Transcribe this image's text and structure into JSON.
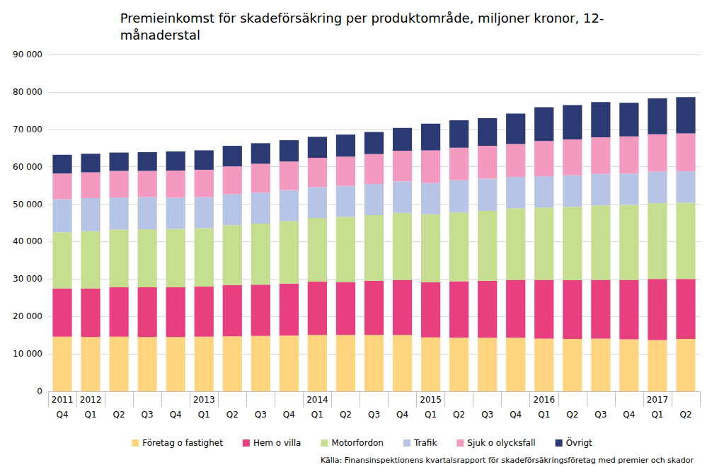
{
  "chart_data": {
    "type": "bar",
    "title": "Premieinkomst för skadeförsäkring per produktområde, miljoner kronor, 12-\nmånaderstal",
    "source": "Källa: Finansinspektionens kvartalsrapport för skadeförsäkringsföretag med premier och skador",
    "categories": [
      "Q4",
      "Q1",
      "Q2",
      "Q3",
      "Q4",
      "Q1",
      "Q2",
      "Q3",
      "Q4",
      "Q1",
      "Q2",
      "Q3",
      "Q4",
      "Q1",
      "Q2",
      "Q3",
      "Q4",
      "Q1",
      "Q2",
      "Q3",
      "Q4",
      "Q1",
      "Q2"
    ],
    "years": [
      "2011",
      "2012",
      null,
      null,
      null,
      "2013",
      null,
      null,
      null,
      "2014",
      null,
      null,
      null,
      "2015",
      null,
      null,
      null,
      "2016",
      null,
      null,
      null,
      "2017",
      null
    ],
    "stacked": true,
    "grid": true,
    "legend": "bottom",
    "ylim": [
      0,
      90000
    ],
    "yticks": [
      0,
      {
        "value": 10000,
        "label": "10 000"
      },
      {
        "value": 20000,
        "label": "20 000"
      },
      {
        "value": 30000,
        "label": "30 000"
      },
      {
        "value": 40000,
        "label": "40 000"
      },
      {
        "value": 50000,
        "label": "50 000"
      },
      {
        "value": 60000,
        "label": "60 000"
      },
      {
        "value": 70000,
        "label": "70 000"
      },
      {
        "value": 80000,
        "label": "80 000"
      },
      {
        "value": 90000,
        "label": "90 000"
      }
    ],
    "series": [
      {
        "name": "Företag o fastighet",
        "color": "#FFD580",
        "values": [
          14600,
          14500,
          14600,
          14500,
          14500,
          14600,
          14700,
          14800,
          14900,
          15100,
          15100,
          15100,
          15100,
          14400,
          14300,
          14300,
          14300,
          14100,
          14000,
          14100,
          13900,
          13700,
          14000
        ]
      },
      {
        "name": "Hem o villa",
        "color": "#E8407F",
        "values": [
          12900,
          13000,
          13200,
          13300,
          13300,
          13400,
          13700,
          13700,
          13900,
          14200,
          14100,
          14400,
          14700,
          14700,
          15100,
          15200,
          15500,
          15700,
          15700,
          15700,
          15900,
          16300,
          16000
        ]
      },
      {
        "name": "Motorfordon",
        "color": "#C6DE90",
        "values": [
          15000,
          15300,
          15400,
          15500,
          15600,
          15600,
          16000,
          16300,
          16700,
          17000,
          17400,
          17600,
          17900,
          18200,
          18400,
          18700,
          19100,
          19300,
          19600,
          19900,
          20000,
          20300,
          20400
        ]
      },
      {
        "name": "Trafik",
        "color": "#B8C4E6",
        "values": [
          8900,
          8800,
          8600,
          8600,
          8300,
          8300,
          8300,
          8300,
          8300,
          8300,
          8300,
          8300,
          8400,
          8400,
          8600,
          8600,
          8400,
          8400,
          8400,
          8400,
          8400,
          8400,
          8400
        ]
      },
      {
        "name": "Sjuk o olycksfall",
        "color": "#F49AC1",
        "values": [
          6800,
          6900,
          7100,
          7000,
          7300,
          7300,
          7400,
          7700,
          7600,
          7800,
          7800,
          8000,
          8200,
          8700,
          8700,
          8800,
          8800,
          9400,
          9600,
          9800,
          9900,
          10000,
          10100
        ]
      },
      {
        "name": "Övrigt",
        "color": "#2B3A73",
        "values": [
          5000,
          5000,
          4900,
          5000,
          5100,
          5200,
          5500,
          5500,
          5700,
          5600,
          5900,
          5900,
          6100,
          7100,
          7300,
          7400,
          8100,
          9000,
          9200,
          9400,
          9000,
          9600,
          9700
        ]
      }
    ]
  }
}
